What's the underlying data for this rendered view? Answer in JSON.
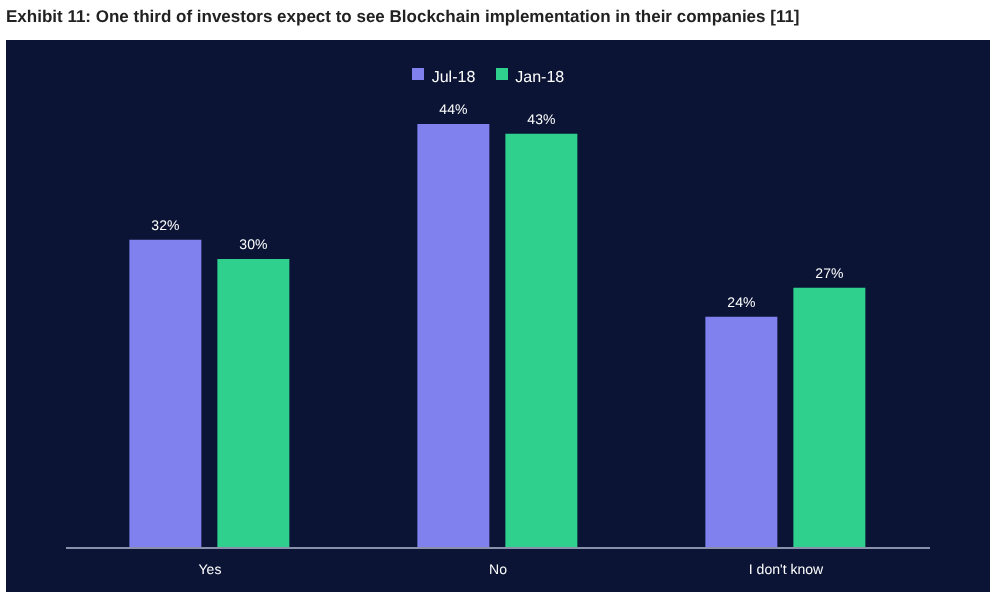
{
  "chart_data": {
    "type": "bar",
    "title": "Exhibit 11: One third of investors expect to see Blockchain implementation in their companies [11]",
    "categories": [
      "Yes",
      "No",
      "I don't know"
    ],
    "series": [
      {
        "name": "Jul-18",
        "color": "#8080ee",
        "values": [
          32,
          44,
          24
        ],
        "value_labels": [
          "32%",
          "44%",
          "24%"
        ]
      },
      {
        "name": "Jan-18",
        "color": "#2fcf8e",
        "values": [
          30,
          43,
          27
        ],
        "value_labels": [
          "30%",
          "43%",
          "27%"
        ]
      }
    ],
    "legend": "top",
    "grid": false
  }
}
